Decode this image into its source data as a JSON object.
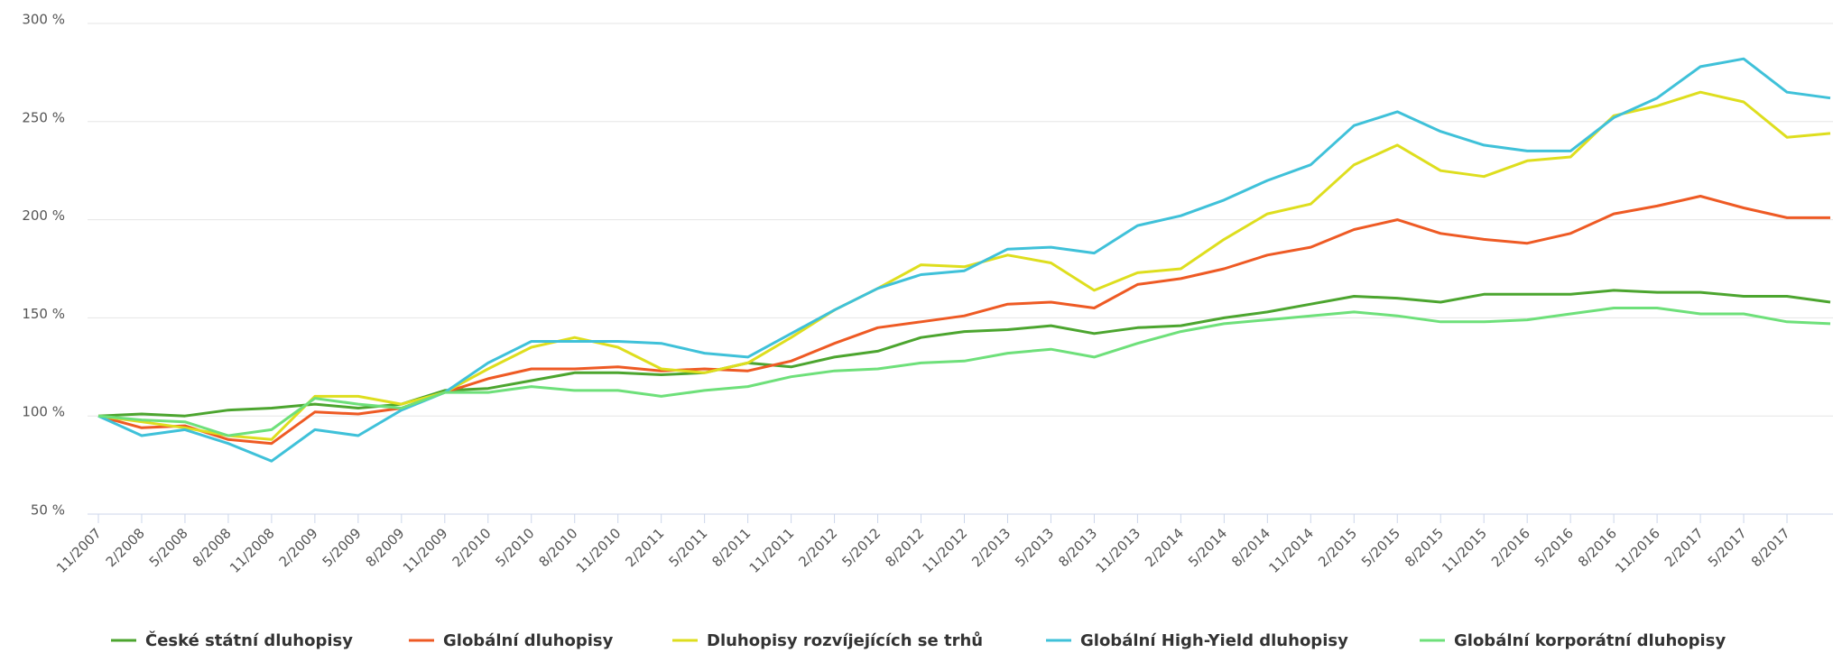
{
  "chart_data": {
    "type": "line",
    "categories": [
      "11/2007",
      "2/2008",
      "5/2008",
      "8/2008",
      "11/2008",
      "2/2009",
      "5/2009",
      "8/2009",
      "11/2009",
      "2/2010",
      "5/2010",
      "8/2010",
      "11/2010",
      "2/2011",
      "5/2011",
      "8/2011",
      "11/2011",
      "2/2012",
      "5/2012",
      "8/2012",
      "11/2012",
      "2/2013",
      "5/2013",
      "8/2013",
      "11/2013",
      "2/2014",
      "5/2014",
      "8/2014",
      "11/2014",
      "2/2015",
      "5/2015",
      "8/2015",
      "11/2015",
      "2/2016",
      "5/2016",
      "8/2016",
      "11/2016",
      "2/2017",
      "5/2017",
      "8/2017",
      null
    ],
    "series": [
      {
        "name": "České státní dluhopisy",
        "color": "#4ca52f",
        "values": [
          100,
          101,
          100,
          103,
          104,
          106,
          104,
          106,
          113,
          114,
          118,
          122,
          122,
          121,
          122,
          127,
          125,
          130,
          133,
          140,
          143,
          144,
          146,
          142,
          145,
          146,
          150,
          153,
          157,
          161,
          160,
          158,
          162,
          162,
          162,
          164,
          163,
          163,
          161,
          161,
          158
        ]
      },
      {
        "name": "Globální dluhopisy",
        "color": "#ee5a24",
        "values": [
          100,
          94,
          95,
          88,
          86,
          102,
          101,
          104,
          112,
          119,
          124,
          124,
          125,
          123,
          124,
          123,
          128,
          137,
          145,
          148,
          151,
          157,
          158,
          155,
          167,
          170,
          175,
          182,
          186,
          195,
          200,
          193,
          190,
          188,
          193,
          203,
          207,
          212,
          206,
          201,
          201
        ]
      },
      {
        "name": "Dluhopisy rozvíjejících se trhů",
        "color": "#dede1e",
        "values": [
          100,
          97,
          94,
          90,
          88,
          110,
          110,
          106,
          112,
          124,
          135,
          140,
          135,
          124,
          122,
          127,
          140,
          154,
          165,
          177,
          176,
          182,
          178,
          164,
          173,
          175,
          190,
          203,
          208,
          228,
          238,
          225,
          222,
          230,
          232,
          253,
          258,
          265,
          260,
          242,
          244
        ]
      },
      {
        "name": "Globální High-Yield dluhopisy",
        "color": "#3fc1d9",
        "values": [
          100,
          90,
          93,
          86,
          77,
          93,
          90,
          103,
          112,
          127,
          138,
          138,
          138,
          137,
          132,
          130,
          142,
          154,
          165,
          172,
          174,
          185,
          186,
          183,
          197,
          202,
          210,
          220,
          228,
          248,
          255,
          245,
          238,
          235,
          235,
          252,
          262,
          278,
          282,
          265,
          262
        ]
      },
      {
        "name": "Globální korporátní dluhopisy",
        "color": "#6ee07a",
        "values": [
          100,
          98,
          97,
          90,
          93,
          109,
          106,
          104,
          112,
          112,
          115,
          113,
          113,
          110,
          113,
          115,
          120,
          123,
          124,
          127,
          128,
          132,
          134,
          130,
          137,
          143,
          147,
          149,
          151,
          153,
          151,
          148,
          148,
          149,
          152,
          155,
          155,
          152,
          152,
          148,
          147
        ]
      }
    ],
    "ylim": [
      50,
      300
    ],
    "yticks": [
      {
        "value": 50,
        "label": "50 %"
      },
      {
        "value": 100,
        "label": "100 %"
      },
      {
        "value": 150,
        "label": "150 %"
      },
      {
        "value": 200,
        "label": "200 %"
      },
      {
        "value": 250,
        "label": "250 %"
      },
      {
        "value": 300,
        "label": "300 %"
      }
    ],
    "grid": true,
    "legend": "bottom"
  }
}
